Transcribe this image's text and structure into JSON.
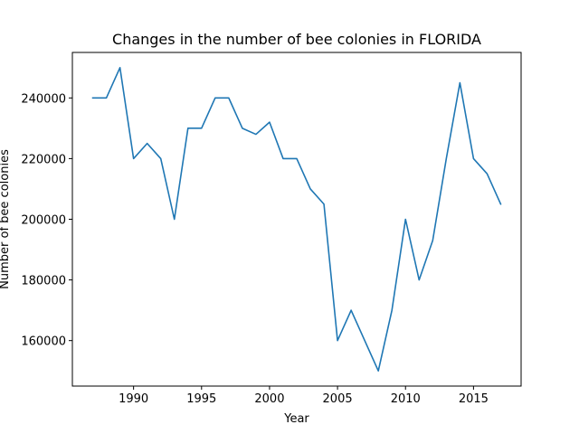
{
  "chart_data": {
    "type": "line",
    "title": "Changes in the number of bee colonies in FLORIDA",
    "xlabel": "Year",
    "ylabel": "Number of bee colonies",
    "xlim": [
      1985.5,
      2018.5
    ],
    "ylim": [
      145000,
      255000
    ],
    "x_ticks": [
      1990,
      1995,
      2000,
      2005,
      2010,
      2015
    ],
    "y_ticks": [
      160000,
      180000,
      200000,
      220000,
      240000
    ],
    "grid": false,
    "legend": "none",
    "series": [
      {
        "color": "#1f77b4",
        "x": [
          1987,
          1988,
          1989,
          1990,
          1991,
          1992,
          1993,
          1994,
          1995,
          1996,
          1997,
          1998,
          1999,
          2000,
          2001,
          2002,
          2003,
          2004,
          2005,
          2006,
          2007,
          2008,
          2009,
          2010,
          2011,
          2012,
          2013,
          2014,
          2015,
          2016,
          2017
        ],
        "y": [
          240000,
          240000,
          250000,
          220000,
          225000,
          220000,
          200000,
          230000,
          230000,
          240000,
          240000,
          230000,
          228000,
          232000,
          220000,
          220000,
          210000,
          205000,
          160000,
          170000,
          160000,
          150000,
          170000,
          200000,
          180000,
          193000,
          220000,
          245000,
          220000,
          215000,
          205000
        ]
      }
    ]
  }
}
